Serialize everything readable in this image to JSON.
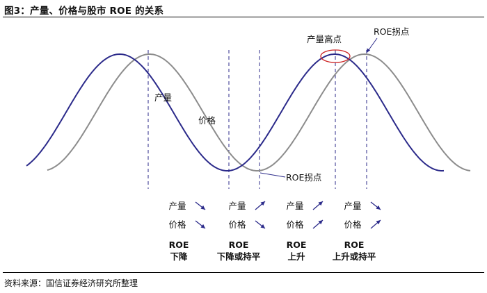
{
  "title": "图3：产量、价格与股市 ROE 的关系",
  "source": "资料来源：国信证券经济研究所整理",
  "colors": {
    "output_curve": "#2b2a8a",
    "price_curve": "#8c8c8c",
    "divider": "#2b2a8a",
    "arrow": "#2b2a8a",
    "highlight": "#cc2222"
  },
  "annotations": {
    "output": "产量",
    "price": "价格",
    "roe_inflection_low": "ROE拐点",
    "output_peak": "产量高点",
    "roe_inflection_high": "ROE拐点"
  },
  "phases": [
    {
      "output_label": "产量",
      "output_dir": "down",
      "price_label": "价格",
      "price_dir": "down",
      "roe_line1": "ROE",
      "roe_line2": "下降"
    },
    {
      "output_label": "产量",
      "output_dir": "up",
      "price_label": "价格",
      "price_dir": "down",
      "roe_line1": "ROE",
      "roe_line2": "下降或持平"
    },
    {
      "output_label": "产量",
      "output_dir": "up",
      "price_label": "价格",
      "price_dir": "up",
      "roe_line1": "ROE",
      "roe_line2": "上升"
    },
    {
      "output_label": "产量",
      "output_dir": "down",
      "price_label": "价格",
      "price_dir": "up",
      "roe_line1": "ROE",
      "roe_line2": "上升或持平"
    }
  ]
}
